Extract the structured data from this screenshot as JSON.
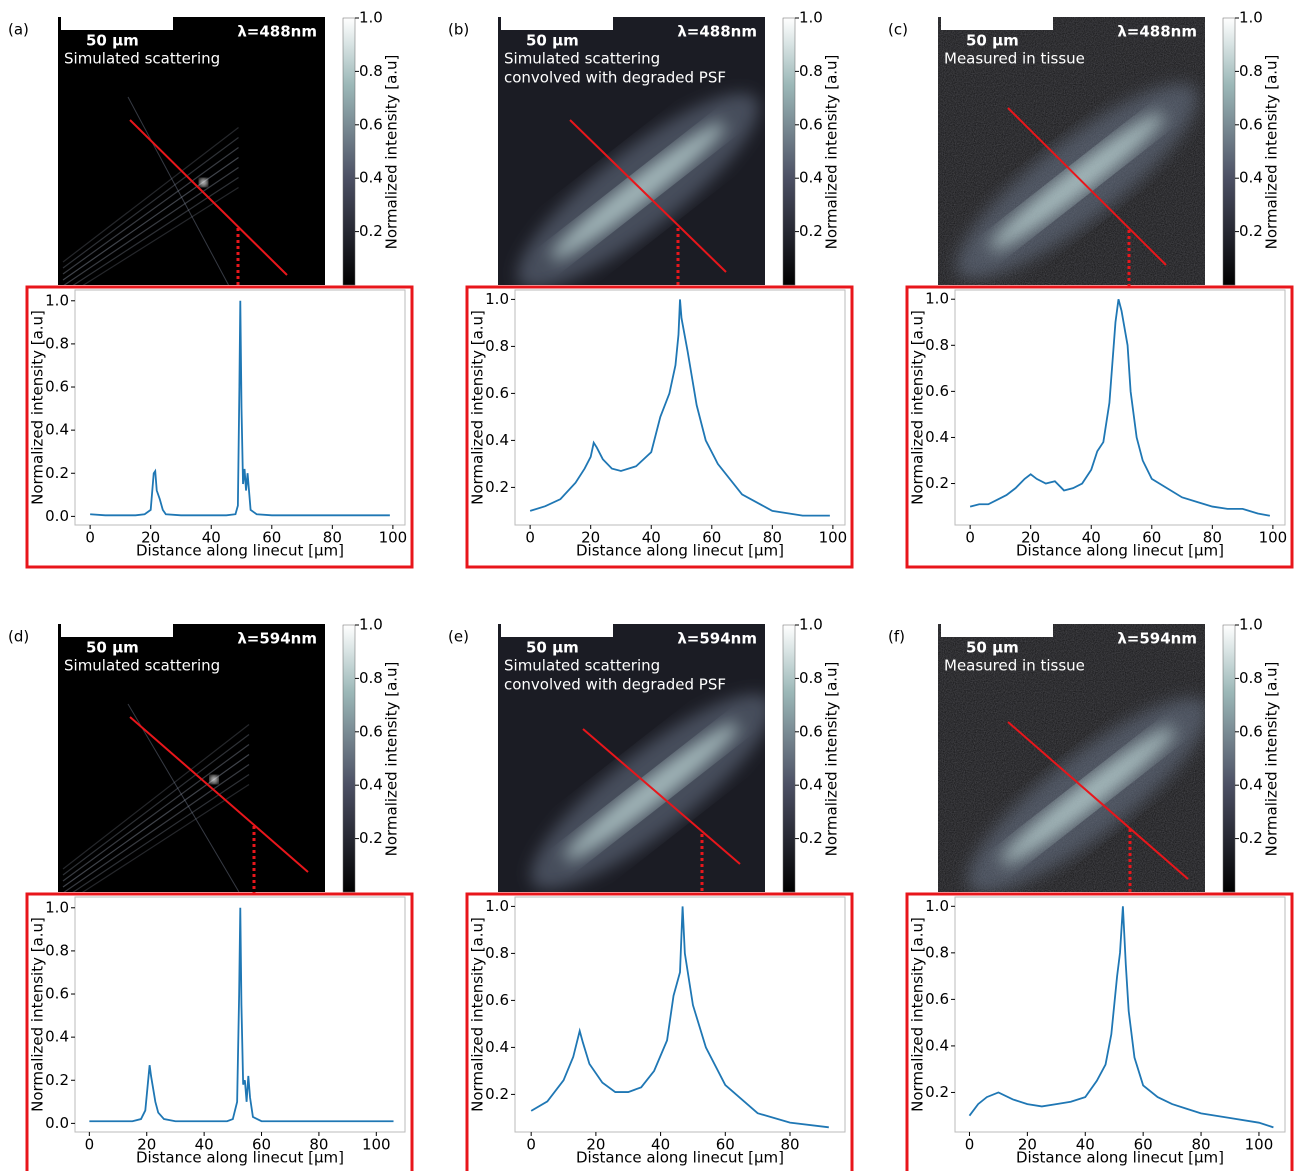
{
  "chart_data": [
    {
      "type": "line",
      "panel": "(a)",
      "scale_bar": "50 µm",
      "wavelength": "λ=488nm",
      "annotations": [
        "Simulated scattering"
      ],
      "colorbar": {
        "label": "Normalized intensity [a.u]",
        "lim": [
          0,
          1
        ],
        "ticks": [
          0.2,
          0.4,
          0.6,
          0.8,
          {
            "value": 1,
            "label": "1.0"
          }
        ]
      },
      "x": [
        0,
        5,
        10,
        15,
        18,
        20,
        21,
        21.5,
        22,
        23,
        24,
        25,
        30,
        40,
        45,
        48,
        48.8,
        49.3,
        49.6,
        50,
        50.5,
        51,
        51.5,
        52,
        53,
        55,
        60,
        70,
        80,
        90,
        99
      ],
      "values": [
        0.01,
        0.005,
        0.005,
        0.005,
        0.01,
        0.03,
        0.2,
        0.21,
        0.12,
        0.08,
        0.03,
        0.01,
        0.005,
        0.005,
        0.005,
        0.01,
        0.05,
        0.6,
        1.0,
        0.5,
        0.15,
        0.22,
        0.12,
        0.2,
        0.03,
        0.01,
        0.005,
        0.005,
        0.005,
        0.005,
        0.005
      ],
      "color": "#1f77b4",
      "xlim": [
        -5,
        104
      ],
      "ylim": [
        -0.04,
        1.05
      ],
      "xticks": [
        0,
        20,
        40,
        60,
        80,
        100
      ],
      "yticks": [
        {
          "value": 0,
          "label": "0.0"
        },
        0.2,
        0.4,
        0.6,
        0.8,
        {
          "value": 1,
          "label": "1.0"
        }
      ],
      "xlabel": "Distance along linecut [μm]",
      "ylabel": "Normalized intensity [a.u]"
    },
    {
      "type": "line",
      "panel": "(b)",
      "scale_bar": "50 µm",
      "wavelength": "λ=488nm",
      "annotations": [
        "Simulated scattering",
        "convolved with degraded PSF"
      ],
      "colorbar": {
        "label": "Normalized intensity [a.u]",
        "lim": [
          0,
          1
        ],
        "ticks": [
          0.2,
          0.4,
          0.6,
          0.8,
          {
            "value": 1,
            "label": "1.0"
          }
        ]
      },
      "x": [
        0,
        5,
        10,
        15,
        18,
        20,
        21,
        22,
        24,
        27,
        30,
        35,
        40,
        43,
        46,
        48,
        49,
        49.5,
        50,
        52,
        55,
        58,
        62,
        70,
        80,
        90,
        99
      ],
      "values": [
        0.1,
        0.12,
        0.15,
        0.22,
        0.28,
        0.33,
        0.39,
        0.37,
        0.32,
        0.28,
        0.27,
        0.29,
        0.35,
        0.5,
        0.6,
        0.72,
        0.85,
        1.0,
        0.92,
        0.78,
        0.55,
        0.4,
        0.3,
        0.17,
        0.1,
        0.08,
        0.08
      ],
      "color": "#1f77b4",
      "xlim": [
        -5,
        104
      ],
      "ylim": [
        0.04,
        1.04
      ],
      "xticks": [
        0,
        20,
        40,
        60,
        80,
        100
      ],
      "yticks": [
        0.2,
        0.4,
        0.6,
        0.8,
        {
          "value": 1,
          "label": "1.0"
        }
      ],
      "xlabel": "Distance along linecut [μm]",
      "ylabel": "Normalized intensity [a.u]"
    },
    {
      "type": "line",
      "panel": "(c)",
      "scale_bar": "50 µm",
      "wavelength": "λ=488nm",
      "annotations": [
        "Measured in tissue"
      ],
      "colorbar": {
        "label": "Normalized intensity [a.u]",
        "lim": [
          0,
          1
        ],
        "ticks": [
          0.2,
          0.4,
          0.6,
          0.8,
          {
            "value": 1,
            "label": "1.0"
          }
        ]
      },
      "x": [
        0,
        3,
        6,
        9,
        12,
        15,
        18,
        20,
        22,
        25,
        28,
        31,
        34,
        37,
        40,
        42,
        44,
        46,
        48,
        49,
        50,
        52,
        53,
        55,
        57,
        60,
        65,
        70,
        75,
        80,
        85,
        90,
        95,
        99
      ],
      "values": [
        0.1,
        0.11,
        0.11,
        0.13,
        0.15,
        0.18,
        0.22,
        0.24,
        0.22,
        0.2,
        0.21,
        0.17,
        0.18,
        0.2,
        0.26,
        0.34,
        0.38,
        0.55,
        0.9,
        1.0,
        0.95,
        0.8,
        0.6,
        0.4,
        0.3,
        0.22,
        0.18,
        0.14,
        0.12,
        0.1,
        0.09,
        0.09,
        0.07,
        0.06
      ],
      "color": "#1f77b4",
      "xlim": [
        -5,
        104
      ],
      "ylim": [
        0.02,
        1.04
      ],
      "xticks": [
        0,
        20,
        40,
        60,
        80,
        100
      ],
      "yticks": [
        0.2,
        0.4,
        0.6,
        0.8,
        {
          "value": 1,
          "label": "1.0"
        }
      ],
      "xlabel": "Distance along linecut [μm]",
      "ylabel": "Normalized intensity [a.u]"
    },
    {
      "type": "line",
      "panel": "(d)",
      "scale_bar": "50 µm",
      "wavelength": "λ=594nm",
      "annotations": [
        "Simulated scattering"
      ],
      "colorbar": {
        "label": "Normalized intensity [a.u]",
        "lim": [
          0,
          1
        ],
        "ticks": [
          0.2,
          0.4,
          0.6,
          0.8,
          {
            "value": 1,
            "label": "1.0"
          }
        ]
      },
      "x": [
        0,
        5,
        10,
        15,
        18,
        19.5,
        20.5,
        21,
        21.5,
        22,
        23,
        24,
        26,
        30,
        40,
        48,
        50,
        51.5,
        52.2,
        52.6,
        53,
        53.6,
        54.2,
        54.8,
        55.4,
        56,
        57,
        60,
        70,
        80,
        90,
        100,
        106
      ],
      "values": [
        0.01,
        0.01,
        0.01,
        0.01,
        0.02,
        0.06,
        0.2,
        0.27,
        0.22,
        0.18,
        0.1,
        0.05,
        0.02,
        0.01,
        0.01,
        0.01,
        0.02,
        0.1,
        0.6,
        1.0,
        0.55,
        0.18,
        0.2,
        0.1,
        0.22,
        0.12,
        0.03,
        0.01,
        0.01,
        0.01,
        0.01,
        0.01,
        0.01
      ],
      "color": "#1f77b4",
      "xlim": [
        -5,
        110
      ],
      "ylim": [
        -0.04,
        1.05
      ],
      "xticks": [
        0,
        20,
        40,
        60,
        80,
        100
      ],
      "yticks": [
        {
          "value": 0,
          "label": "0.0"
        },
        0.2,
        0.4,
        0.6,
        0.8,
        {
          "value": 1,
          "label": "1.0"
        }
      ],
      "xlabel": "Distance along linecut [μm]",
      "ylabel": "Normalized intensity [a.u]"
    },
    {
      "type": "line",
      "panel": "(e)",
      "scale_bar": "50 µm",
      "wavelength": "λ=594nm",
      "annotations": [
        "Simulated scattering",
        "convolved with degraded PSF"
      ],
      "colorbar": {
        "label": "Normalized intensity [a.u]",
        "lim": [
          0,
          1
        ],
        "ticks": [
          0.2,
          0.4,
          0.6,
          0.8,
          {
            "value": 1,
            "label": "1.0"
          }
        ]
      },
      "x": [
        0,
        5,
        10,
        13,
        15,
        16,
        18,
        22,
        26,
        30,
        34,
        38,
        42,
        44,
        46,
        46.8,
        47.5,
        50,
        54,
        60,
        70,
        80,
        92
      ],
      "values": [
        0.13,
        0.17,
        0.26,
        0.36,
        0.47,
        0.42,
        0.33,
        0.25,
        0.21,
        0.21,
        0.23,
        0.3,
        0.43,
        0.62,
        0.72,
        1.0,
        0.8,
        0.58,
        0.4,
        0.24,
        0.12,
        0.08,
        0.06
      ],
      "color": "#1f77b4",
      "xlim": [
        -5,
        97
      ],
      "ylim": [
        0.04,
        1.04
      ],
      "xticks": [
        0,
        20,
        40,
        60,
        80
      ],
      "yticks": [
        0.2,
        0.4,
        0.6,
        0.8,
        {
          "value": 1,
          "label": "1.0"
        }
      ],
      "xlabel": "Distance along linecut [μm]",
      "ylabel": "Normalized intensity [a.u]"
    },
    {
      "type": "line",
      "panel": "(f)",
      "scale_bar": "50 µm",
      "wavelength": "λ=594nm",
      "annotations": [
        "Measured in tissue"
      ],
      "colorbar": {
        "label": "Normalized intensity [a.u]",
        "lim": [
          0,
          1
        ],
        "ticks": [
          0.2,
          0.4,
          0.6,
          0.8,
          {
            "value": 1,
            "label": "1.0"
          }
        ]
      },
      "x": [
        0,
        3,
        6,
        10,
        15,
        20,
        25,
        30,
        35,
        40,
        44,
        47,
        49,
        51,
        52,
        53,
        54,
        55,
        57,
        60,
        65,
        70,
        75,
        80,
        90,
        100,
        105
      ],
      "values": [
        0.1,
        0.15,
        0.18,
        0.2,
        0.17,
        0.15,
        0.14,
        0.15,
        0.16,
        0.18,
        0.25,
        0.32,
        0.45,
        0.7,
        0.8,
        1.0,
        0.75,
        0.55,
        0.35,
        0.23,
        0.18,
        0.15,
        0.13,
        0.11,
        0.09,
        0.07,
        0.05
      ],
      "color": "#1f77b4",
      "xlim": [
        -5,
        109
      ],
      "ylim": [
        0.03,
        1.04
      ],
      "xticks": [
        0,
        20,
        40,
        60,
        80,
        100
      ],
      "yticks": [
        0.2,
        0.4,
        0.6,
        0.8,
        {
          "value": 1,
          "label": "1.0"
        }
      ],
      "xlabel": "Distance along linecut [μm]",
      "ylabel": "Normalized intensity [a.u]"
    }
  ]
}
